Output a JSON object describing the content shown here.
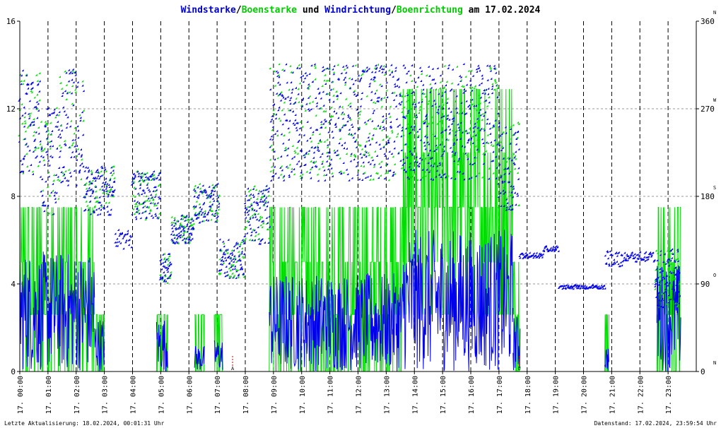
{
  "chart_data": {
    "type": "scatter",
    "title_parts": [
      {
        "text": "Windstarke",
        "color": "#0000cc"
      },
      {
        "text": "/",
        "color": "#000000"
      },
      {
        "text": "Boenstarke",
        "color": "#00cc00"
      },
      {
        "text": " und ",
        "color": "#000000"
      },
      {
        "text": "Windrichtung",
        "color": "#0000cc"
      },
      {
        "text": "/",
        "color": "#000000"
      },
      {
        "text": "Boenrichtung",
        "color": "#00cc00"
      },
      {
        "text": " am 17.02.2024",
        "color": "#000000"
      }
    ],
    "y_left_ticks": [
      "0",
      "4",
      "8",
      "12",
      "16"
    ],
    "y_left_range": [
      0,
      16
    ],
    "y_right_ticks": [
      "0",
      "90",
      "180",
      "270",
      "360"
    ],
    "y_right_range": [
      0,
      360
    ],
    "compass_labels": [
      {
        "deg": 0,
        "label": "N"
      },
      {
        "deg": 90,
        "label": "O"
      },
      {
        "deg": 180,
        "label": "S"
      },
      {
        "deg": 270,
        "label": "W"
      },
      {
        "deg": 360,
        "label": "N"
      }
    ],
    "x_ticks": [
      "17. 00:00",
      "17. 01:00",
      "17. 02:00",
      "17. 03:00",
      "17. 04:00",
      "17. 05:00",
      "17. 06:00",
      "17. 07:00",
      "17. 08:00",
      "17. 09:00",
      "17. 10:00",
      "17. 11:00",
      "17. 12:00",
      "17. 13:00",
      "17. 14:00",
      "17. 15:00",
      "17. 16:00",
      "17. 17:00",
      "17. 18:00",
      "17. 19:00",
      "17. 20:00",
      "17. 21:00",
      "17. 22:00",
      "17. 23:00"
    ],
    "x_range_hours": [
      0,
      24
    ],
    "markers": [
      {
        "hour": 7.55,
        "label": "A",
        "color": "#cc0000"
      },
      {
        "hour": 17.72,
        "label": "U",
        "color": "#cc0000"
      }
    ],
    "grid": true,
    "colors": {
      "wind": "#0000ee",
      "gust": "#00dd00",
      "grid": "#999999",
      "axis": "#000000"
    },
    "series": [
      {
        "name": "Windstarke",
        "kind": "line",
        "axis": "left"
      },
      {
        "name": "Boenstarke",
        "kind": "line",
        "axis": "left"
      },
      {
        "name": "Windrichtung",
        "kind": "points",
        "axis": "right"
      },
      {
        "name": "Boenrichtung",
        "kind": "points",
        "axis": "right"
      }
    ],
    "activity_segments": [
      {
        "start": 0.0,
        "end": 2.65,
        "wind_hi": 5.5,
        "gust_hi": 7.5
      },
      {
        "start": 2.65,
        "end": 3.0,
        "wind_hi": 2.5,
        "gust_hi": 2.6
      },
      {
        "start": 4.85,
        "end": 5.25,
        "wind_hi": 2.5,
        "gust_hi": 2.6
      },
      {
        "start": 6.2,
        "end": 6.55,
        "wind_hi": 1.2,
        "gust_hi": 2.6
      },
      {
        "start": 6.9,
        "end": 7.2,
        "wind_hi": 1.5,
        "gust_hi": 2.6
      },
      {
        "start": 8.85,
        "end": 11.2,
        "wind_hi": 4.5,
        "gust_hi": 7.5
      },
      {
        "start": 11.2,
        "end": 13.6,
        "wind_hi": 4.5,
        "gust_hi": 7.5
      },
      {
        "start": 13.6,
        "end": 17.5,
        "wind_hi": 6.5,
        "gust_hi": 12.9
      },
      {
        "start": 17.5,
        "end": 17.75,
        "wind_hi": 2.6,
        "gust_hi": 5.0
      },
      {
        "start": 20.75,
        "end": 20.9,
        "wind_hi": 1.2,
        "gust_hi": 2.6
      },
      {
        "start": 22.6,
        "end": 23.45,
        "wind_hi": 5.0,
        "gust_hi": 7.5
      }
    ],
    "direction_segments": [
      {
        "start": 0.0,
        "end": 0.75,
        "center": 255,
        "spread": 55
      },
      {
        "start": 0.75,
        "end": 1.45,
        "center": 215,
        "spread": 55
      },
      {
        "start": 1.45,
        "end": 2.3,
        "center": 250,
        "spread": 60
      },
      {
        "start": 2.3,
        "end": 3.4,
        "center": 185,
        "spread": 25
      },
      {
        "start": 3.4,
        "end": 4.0,
        "center": 135,
        "spread": 10
      },
      {
        "start": 4.0,
        "end": 5.0,
        "center": 180,
        "spread": 25
      },
      {
        "start": 5.0,
        "end": 5.4,
        "center": 105,
        "spread": 15
      },
      {
        "start": 5.4,
        "end": 6.2,
        "center": 145,
        "spread": 15
      },
      {
        "start": 6.2,
        "end": 7.1,
        "center": 172,
        "spread": 20
      },
      {
        "start": 7.1,
        "end": 8.0,
        "center": 115,
        "spread": 20
      },
      {
        "start": 8.0,
        "end": 8.9,
        "center": 160,
        "spread": 30
      },
      {
        "start": 8.9,
        "end": 17.0,
        "center": 255,
        "spread": 60
      },
      {
        "start": 17.0,
        "end": 17.75,
        "center": 210,
        "spread": 45
      },
      {
        "start": 17.75,
        "end": 18.6,
        "center": 118,
        "spread": 3
      },
      {
        "start": 18.6,
        "end": 19.15,
        "center": 125,
        "spread": 3
      },
      {
        "start": 19.15,
        "end": 20.8,
        "center": 86,
        "spread": 2
      },
      {
        "start": 20.8,
        "end": 21.4,
        "center": 115,
        "spread": 8
      },
      {
        "start": 21.4,
        "end": 22.55,
        "center": 117,
        "spread": 5
      },
      {
        "start": 22.55,
        "end": 23.45,
        "center": 95,
        "spread": 30
      }
    ]
  },
  "footer": {
    "left": "Letzte Aktualisierung: 18.02.2024, 00:01:31 Uhr",
    "right": "Datenstand: 17.02.2024, 23:59:54 Uhr"
  }
}
